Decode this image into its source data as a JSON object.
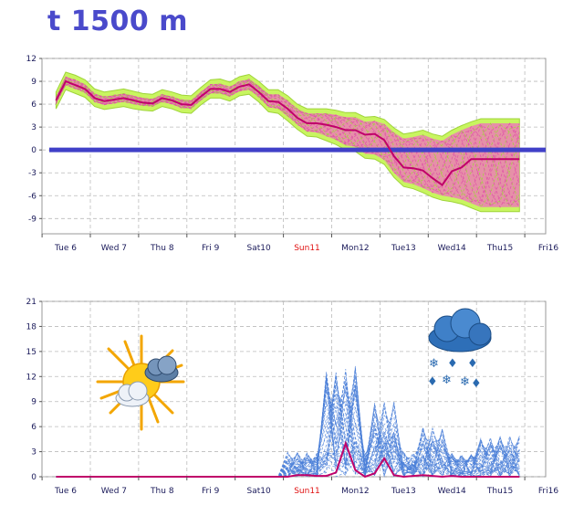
{
  "title": "t 1500 m",
  "day_labels": [
    {
      "label": "Tue 6",
      "weekend": false
    },
    {
      "label": "Wed 7",
      "weekend": false
    },
    {
      "label": "Thu 8",
      "weekend": false
    },
    {
      "label": "Fri 9",
      "weekend": false
    },
    {
      "label": "Sat10",
      "weekend": false
    },
    {
      "label": "Sun11",
      "weekend": true
    },
    {
      "label": "Mon12",
      "weekend": false
    },
    {
      "label": "Tue13",
      "weekend": false
    },
    {
      "label": "Wed14",
      "weekend": false
    },
    {
      "label": "Thu15",
      "weekend": false
    },
    {
      "label": "Fri16",
      "weekend": false
    }
  ],
  "colors": {
    "envelope_outer": "#c8f560",
    "envelope_inner": "#f06ec0",
    "main_line": "#c0006a",
    "zero_line": "#4040c8",
    "ensemble_precip": "#4a7fd8",
    "precip_main": "#c0006a",
    "grid": "#bbbbbb",
    "axis_text": "#1a1a5a",
    "weekend_text": "#e01010"
  },
  "icons": [
    "sun-cloud-icon",
    "snow-cloud-icon"
  ],
  "chart_data": [
    {
      "type": "area",
      "title": "t 1500 m",
      "ylim": [
        -11,
        12
      ],
      "yticks": [
        12,
        9,
        6,
        3,
        0,
        -3,
        -6,
        -9
      ],
      "xlim": [
        0,
        10
      ],
      "grid": true,
      "x": [
        -0.2,
        0,
        0.2,
        0.4,
        0.6,
        0.8,
        1,
        1.2,
        1.4,
        1.6,
        1.8,
        2,
        2.2,
        2.4,
        2.6,
        2.8,
        3,
        3.2,
        3.4,
        3.6,
        3.8,
        4,
        4.2,
        4.4,
        4.6,
        4.8,
        5,
        5.2,
        5.4,
        5.6,
        5.8,
        6,
        6.2,
        6.4,
        6.6,
        6.8,
        7,
        7.2,
        7.4,
        7.6,
        7.8,
        8,
        8.2,
        8.4,
        8.6,
        8.8,
        9,
        9.2,
        9.4
      ],
      "series": [
        {
          "role": "main",
          "values": [
            6.5,
            9,
            8.5,
            8,
            6.8,
            6.4,
            6.6,
            6.8,
            6.5,
            6.2,
            6.1,
            6.8,
            6.5,
            6.0,
            5.9,
            7.0,
            8.0,
            8.0,
            7.6,
            8.3,
            8.6,
            7.6,
            6.4,
            6.3,
            5.4,
            4.2,
            3.5,
            3.5,
            3.3,
            3.0,
            2.6,
            2.6,
            2.0,
            2.1,
            1.3,
            -0.8,
            -2.3,
            -2.4,
            -2.7,
            -3.7,
            -4.6,
            -2.8,
            -2.3,
            -1.2,
            -1.2,
            -1.2,
            -1.2,
            -1.2,
            -1.2
          ]
        },
        {
          "role": "spread_low",
          "values": [
            6,
            8.5,
            8,
            7.5,
            6.3,
            5.9,
            6.1,
            6.3,
            6.0,
            5.8,
            5.7,
            6.3,
            6.0,
            5.5,
            5.4,
            6.5,
            7.4,
            7.4,
            7.0,
            7.7,
            7.9,
            6.9,
            5.6,
            5.4,
            4.4,
            3.3,
            2.4,
            2.3,
            1.8,
            1.3,
            0.6,
            0.4,
            -0.5,
            -0.6,
            -1.3,
            -3.0,
            -4.2,
            -4.5,
            -5.0,
            -5.6,
            -6.0,
            -6.2,
            -6.5,
            -7.0,
            -7.5,
            -7.5,
            -7.5,
            -7.5,
            -7.5
          ]
        },
        {
          "role": "spread_high",
          "values": [
            7,
            9.6,
            9.2,
            8.6,
            7.4,
            7.0,
            7.2,
            7.4,
            7.1,
            6.8,
            6.7,
            7.3,
            7.0,
            6.6,
            6.5,
            7.6,
            8.6,
            8.7,
            8.3,
            9.0,
            9.3,
            8.4,
            7.3,
            7.3,
            6.5,
            5.4,
            4.8,
            4.8,
            4.8,
            4.6,
            4.3,
            4.3,
            3.7,
            3.8,
            3.4,
            2.3,
            1.5,
            1.7,
            2.0,
            1.5,
            1.2,
            2.0,
            2.6,
            3.1,
            3.5,
            3.5,
            3.5,
            3.5,
            3.5
          ]
        }
      ]
    },
    {
      "type": "line",
      "ylim": [
        0,
        21
      ],
      "yticks": [
        21,
        18,
        15,
        12,
        9,
        6,
        3,
        0
      ],
      "xlim": [
        0,
        10
      ],
      "grid": true,
      "x": [
        -0.2,
        0,
        0.2,
        0.4,
        0.6,
        0.8,
        1,
        1.2,
        1.4,
        1.6,
        1.8,
        2,
        2.2,
        2.4,
        2.6,
        2.8,
        3,
        3.2,
        3.4,
        3.6,
        3.8,
        4,
        4.2,
        4.4,
        4.6,
        4.8,
        5,
        5.2,
        5.4,
        5.6,
        5.8,
        6,
        6.2,
        6.4,
        6.6,
        6.8,
        7,
        7.2,
        7.4,
        7.6,
        7.8,
        8,
        8.2,
        8.4,
        8.6,
        8.8,
        9,
        9.2,
        9.4
      ],
      "series": [
        {
          "role": "main",
          "values": [
            0,
            0,
            0,
            0,
            0,
            0,
            0,
            0,
            0,
            0,
            0,
            0,
            0,
            0,
            0,
            0,
            0,
            0,
            0,
            0,
            0,
            0,
            0,
            0,
            0,
            0.2,
            0.2,
            0.1,
            0.1,
            0.5,
            4.0,
            0.8,
            0,
            0.4,
            2.2,
            0.2,
            0,
            0.1,
            0.2,
            0.1,
            0,
            0.1,
            0,
            0,
            0,
            0,
            0,
            0,
            0
          ]
        }
      ]
    }
  ]
}
